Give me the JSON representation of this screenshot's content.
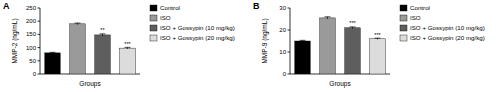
{
  "chart_data": [
    {
      "type": "bar",
      "title": "A",
      "y_label": "MMP-2 (ng/mL)",
      "x_label": "Groups",
      "categories": [
        "Control",
        "ISO",
        "ISO + Gossypin (10 mg/kg)",
        "ISO + Gossypin (20 mg/kg)"
      ],
      "values": [
        80,
        190,
        148,
        98
      ],
      "errors": [
        2,
        3,
        4,
        3
      ],
      "annotations": [
        null,
        null,
        "**",
        "***"
      ],
      "colors": [
        "#000000",
        "#9a9a9a",
        "#5e5e5e",
        "#dcdcdc"
      ],
      "ylim": [
        0,
        250
      ],
      "yticks": [
        0,
        50,
        100,
        150,
        200,
        250
      ],
      "legend": "right",
      "tick_labels": "y"
    },
    {
      "type": "bar",
      "title": "B",
      "y_label": "MMP-9 (ng/mL)",
      "x_label": "Groups",
      "categories": [
        "Control",
        "ISO",
        "ISO + Gossypin (10 mg/kg)",
        "ISO + Gossypin (20 mg/kg)"
      ],
      "values": [
        15,
        25.5,
        21,
        16
      ],
      "errors": [
        0.3,
        0.5,
        0.4,
        0.3
      ],
      "annotations": [
        null,
        null,
        "***",
        "***"
      ],
      "colors": [
        "#000000",
        "#9a9a9a",
        "#5e5e5e",
        "#dcdcdc"
      ],
      "ylim": [
        0,
        30
      ],
      "yticks": [
        0,
        10,
        20,
        30
      ],
      "legend": "right",
      "tick_labels": "y"
    }
  ]
}
